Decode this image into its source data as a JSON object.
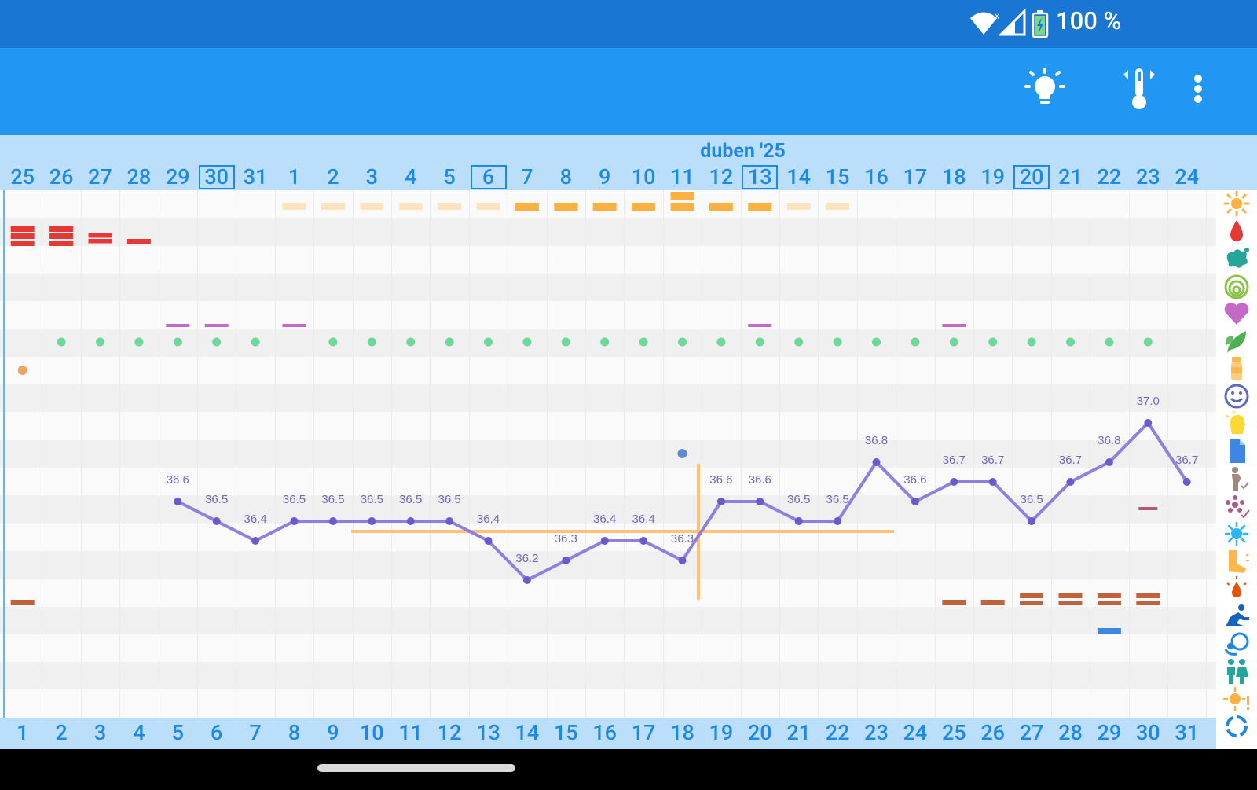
{
  "status_bar": {
    "battery_text": "100 %"
  },
  "app_bar": {
    "icons": [
      "lightbulb-icon",
      "thermometer-icon",
      "more-vert-icon"
    ]
  },
  "calendar": {
    "month_label": "duben '25",
    "top_days": [
      "25",
      "26",
      "27",
      "28",
      "29",
      "30",
      "31",
      "1",
      "2",
      "3",
      "4",
      "5",
      "6",
      "7",
      "8",
      "9",
      "10",
      "11",
      "12",
      "13",
      "14",
      "15",
      "16",
      "17",
      "18",
      "19",
      "20",
      "21",
      "22",
      "23",
      "24"
    ],
    "boxed_days": [
      "30",
      "6",
      "13",
      "20"
    ],
    "cycle_days": [
      "1",
      "2",
      "3",
      "4",
      "5",
      "6",
      "7",
      "8",
      "9",
      "10",
      "11",
      "12",
      "13",
      "14",
      "15",
      "16",
      "17",
      "18",
      "19",
      "20",
      "21",
      "22",
      "23",
      "24",
      "25",
      "26",
      "27",
      "28",
      "29",
      "30",
      "31"
    ]
  },
  "temperatures": [
    {
      "col": 4,
      "label": "36.6",
      "value": 36.6
    },
    {
      "col": 5,
      "label": "36.5",
      "value": 36.5
    },
    {
      "col": 6,
      "label": "36.4",
      "value": 36.4
    },
    {
      "col": 7,
      "label": "36.5",
      "value": 36.5
    },
    {
      "col": 8,
      "label": "36.5",
      "value": 36.5
    },
    {
      "col": 9,
      "label": "36.5",
      "value": 36.5
    },
    {
      "col": 10,
      "label": "36.5",
      "value": 36.5
    },
    {
      "col": 11,
      "label": "36.5",
      "value": 36.5
    },
    {
      "col": 12,
      "label": "36.4",
      "value": 36.4
    },
    {
      "col": 13,
      "label": "36.2",
      "value": 36.2
    },
    {
      "col": 14,
      "label": "36.3",
      "value": 36.3
    },
    {
      "col": 15,
      "label": "36.4",
      "value": 36.4
    },
    {
      "col": 16,
      "label": "36.4",
      "value": 36.4
    },
    {
      "col": 17,
      "label": "36.3",
      "value": 36.3
    },
    {
      "col": 18,
      "label": "36.6",
      "value": 36.6
    },
    {
      "col": 19,
      "label": "36.6",
      "value": 36.6
    },
    {
      "col": 20,
      "label": "36.5",
      "value": 36.5
    },
    {
      "col": 21,
      "label": "36.5",
      "value": 36.5
    },
    {
      "col": 22,
      "label": "36.8",
      "value": 36.8
    },
    {
      "col": 23,
      "label": "36.6",
      "value": 36.6
    },
    {
      "col": 24,
      "label": "36.7",
      "value": 36.7
    },
    {
      "col": 25,
      "label": "36.7",
      "value": 36.7
    },
    {
      "col": 26,
      "label": "36.5",
      "value": 36.5
    },
    {
      "col": 27,
      "label": "36.7",
      "value": 36.7
    },
    {
      "col": 28,
      "label": "36.8",
      "value": 36.8
    },
    {
      "col": 29,
      "label": "37.0",
      "value": 37.0
    },
    {
      "col": 30,
      "label": "36.7",
      "value": 36.7
    }
  ],
  "colors": {
    "temp_line": "#8e7fe0",
    "coverline": "#ffc078",
    "menstruation": "#e53935",
    "fertile_strong": "#fbb040",
    "fertile_light": "#fde3c0",
    "intimacy": "#c36ac6",
    "pill": "#6ed79a",
    "brown": "#c0623a",
    "blue_mark": "#3d86e6"
  },
  "right_icons": [
    "sun-icon",
    "drop-icon",
    "splat-icon",
    "rings-icon",
    "heart-icon",
    "leaf-icon",
    "pill-bottle-icon",
    "smiley-icon",
    "head-icon",
    "document-icon",
    "pregnant-icon",
    "flower-check-icon",
    "virus-icon",
    "leg-icon",
    "bleeding-icon",
    "exercise-icon",
    "baby-icon",
    "couple-icon",
    "sun-alert-icon",
    "cycle-icon"
  ]
}
